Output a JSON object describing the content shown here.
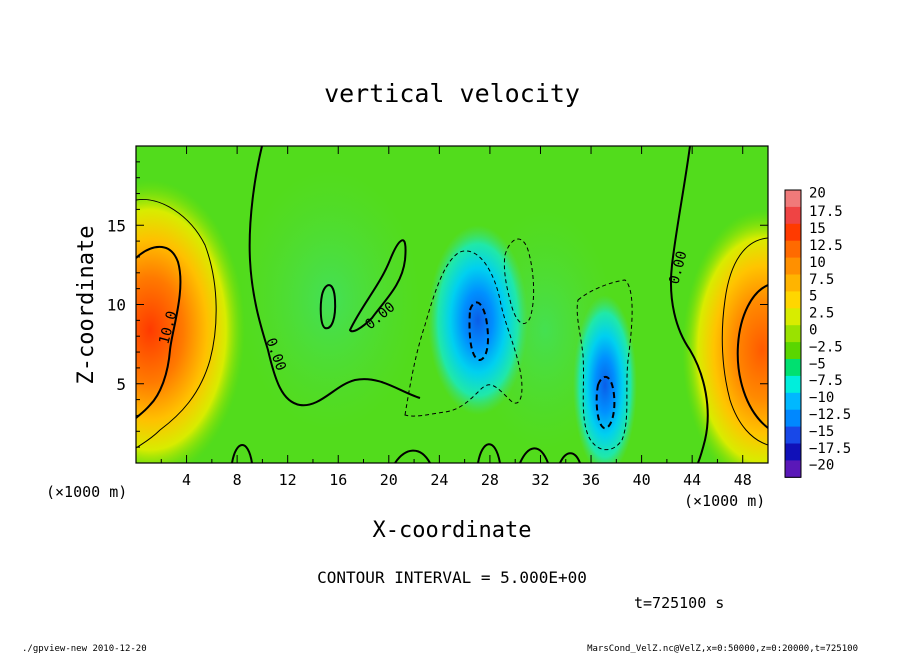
{
  "chart_data": {
    "type": "heatmap",
    "title": "vertical velocity",
    "xlabel": "X-coordinate",
    "ylabel": "Z-coordinate",
    "x_unit_label": "(×1000 m)",
    "y_unit_label": "(×1000 m)",
    "xlim": [
      0,
      50
    ],
    "ylim": [
      0,
      20
    ],
    "x_ticks": [
      4,
      8,
      12,
      16,
      20,
      24,
      28,
      32,
      36,
      40,
      44,
      48
    ],
    "y_ticks": [
      5,
      10,
      15
    ],
    "colorbar": {
      "levels": [
        "20",
        "17.5",
        "15",
        "12.5",
        "10",
        "7.5",
        "5",
        "2.5",
        "0",
        "-2.5",
        "-5",
        "-7.5",
        "-10",
        "-12.5",
        "-15",
        "-17.5",
        "-20"
      ],
      "colors": [
        "#f07a7a",
        "#ef4444",
        "#ff3a00",
        "#ff6a00",
        "#ff9000",
        "#ffb400",
        "#ffd600",
        "#d8ec00",
        "#9ae200",
        "#5ad600",
        "#00e070",
        "#00eedc",
        "#00b8ff",
        "#0088ff",
        "#1848e8",
        "#1010b8",
        "#5a18b8"
      ]
    },
    "contour_labels": [
      "10.0",
      "0.00",
      "0.00",
      "0.00"
    ],
    "contour_interval_text": "CONTOUR INTERVAL = 5.000E+00",
    "time_text": "t=725100 s"
  },
  "footer": {
    "left": "./gpview-new  2010-12-20",
    "right": "MarsCond_VelZ.nc@VelZ,x=0:50000,z=0:20000,t=725100"
  }
}
